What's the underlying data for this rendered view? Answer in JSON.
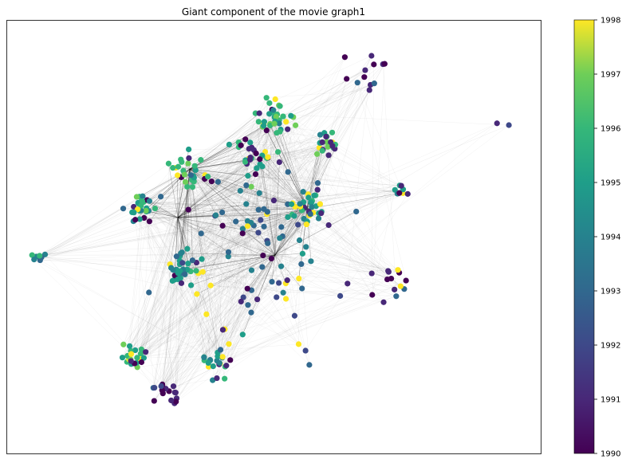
{
  "figure": {
    "title": "Giant component of the movie graph1"
  },
  "colorbar": {
    "min": 1990,
    "max": 1998,
    "ticks": [
      "1990",
      "1991",
      "1992",
      "1993",
      "1994",
      "1995",
      "1996",
      "1997",
      "1998"
    ],
    "colormap": "viridis"
  },
  "graph": {
    "node_color": "viridis(year)",
    "edge_color": "#000000",
    "clusters": [
      {
        "id": "top-center",
        "year_center": 1996,
        "size": 36
      },
      {
        "id": "upper-left",
        "year_center": 1996,
        "size": 28
      },
      {
        "id": "upper-mid",
        "year_center": 1995,
        "size": 30
      },
      {
        "id": "left",
        "year_center": 1995,
        "size": 30
      },
      {
        "id": "center-left",
        "year_center": 1995,
        "size": 34
      },
      {
        "id": "center-right",
        "year_center": 1995,
        "size": 34
      },
      {
        "id": "right-top",
        "year_center": 1996,
        "size": 22
      },
      {
        "id": "bottom-left",
        "year_center": 1996,
        "size": 22
      },
      {
        "id": "bottom-mid",
        "year_center": 1995,
        "size": 22
      },
      {
        "id": "bottom",
        "year_center": 1991,
        "size": 18
      },
      {
        "id": "top-right",
        "year_center": 1991,
        "size": 12
      },
      {
        "id": "right-outer",
        "year_center": 1995,
        "size": 8
      },
      {
        "id": "right-lower",
        "year_center": 1991,
        "size": 14
      },
      {
        "id": "far-left",
        "year_center": 1995,
        "size": 7
      },
      {
        "id": "far-right",
        "year_center": 1991,
        "size": 2
      },
      {
        "id": "scatter",
        "year_center": 1993,
        "size": 90
      }
    ]
  }
}
